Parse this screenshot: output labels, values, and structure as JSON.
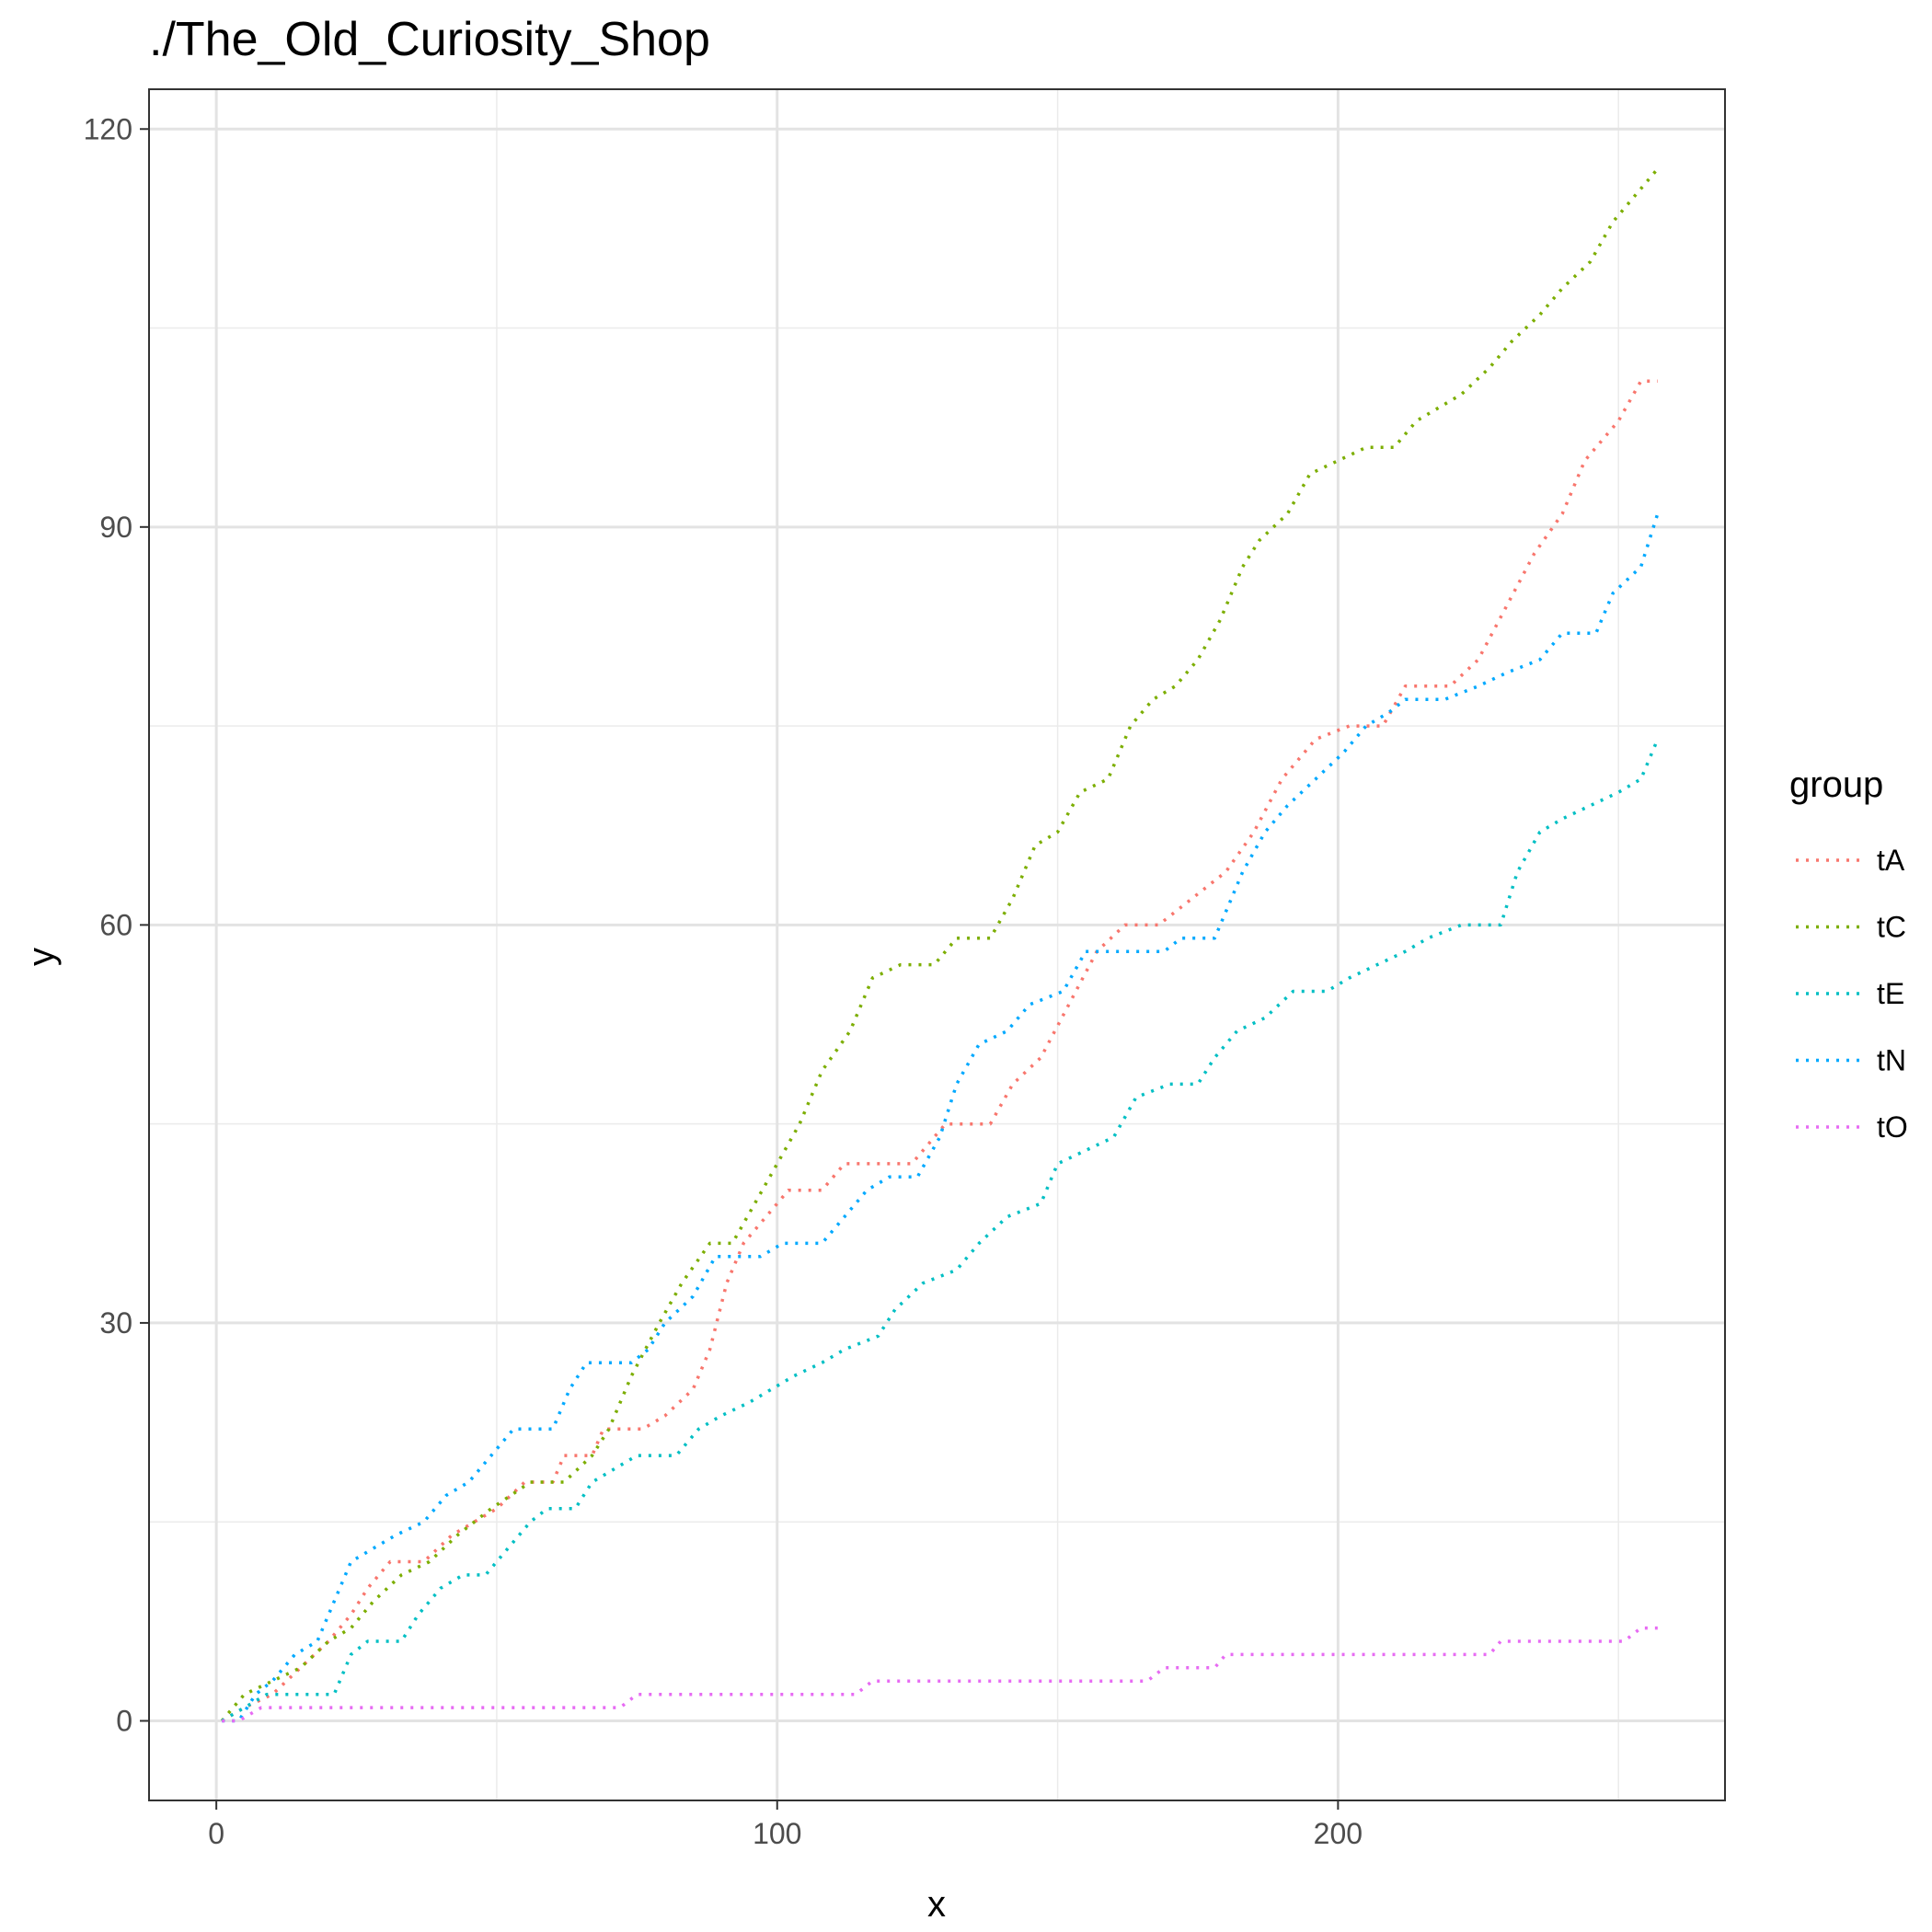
{
  "chart_data": {
    "type": "line",
    "title": "./The_Old_Curiosity_Shop",
    "xlabel": "x",
    "ylabel": "y",
    "xlim": [
      -12,
      269
    ],
    "ylim": [
      -6,
      123
    ],
    "x_ticks": [
      0,
      100,
      200
    ],
    "y_ticks": [
      0,
      30,
      60,
      90,
      120
    ],
    "x_tick_labels": [
      "0",
      "100",
      "200"
    ],
    "y_tick_labels": [
      "0",
      "30",
      "60",
      "90",
      "120"
    ],
    "grid": true,
    "line_style": "dotted",
    "legend": {
      "title": "group",
      "position": "right"
    },
    "series": [
      {
        "name": "tA",
        "color": "#F8766D",
        "points": [
          [
            1,
            0
          ],
          [
            5,
            1
          ],
          [
            10,
            2
          ],
          [
            15,
            4
          ],
          [
            20,
            6
          ],
          [
            24,
            8
          ],
          [
            27,
            10
          ],
          [
            31,
            12
          ],
          [
            37,
            12
          ],
          [
            42,
            14
          ],
          [
            46,
            15
          ],
          [
            50,
            16
          ],
          [
            55,
            18
          ],
          [
            60,
            18
          ],
          [
            62,
            20
          ],
          [
            67,
            20
          ],
          [
            69,
            22
          ],
          [
            76,
            22
          ],
          [
            80,
            23
          ],
          [
            85,
            25
          ],
          [
            88,
            28
          ],
          [
            91,
            33
          ],
          [
            94,
            36
          ],
          [
            98,
            38
          ],
          [
            102,
            40
          ],
          [
            108,
            40
          ],
          [
            112,
            42
          ],
          [
            118,
            42
          ],
          [
            124,
            42
          ],
          [
            130,
            45
          ],
          [
            138,
            45
          ],
          [
            142,
            48
          ],
          [
            147,
            50
          ],
          [
            152,
            54
          ],
          [
            157,
            58
          ],
          [
            162,
            60
          ],
          [
            168,
            60
          ],
          [
            174,
            62
          ],
          [
            180,
            64
          ],
          [
            185,
            67
          ],
          [
            190,
            71
          ],
          [
            196,
            74
          ],
          [
            202,
            75
          ],
          [
            208,
            75
          ],
          [
            212,
            78
          ],
          [
            220,
            78
          ],
          [
            225,
            80
          ],
          [
            230,
            84
          ],
          [
            235,
            88
          ],
          [
            240,
            91
          ],
          [
            244,
            95
          ],
          [
            250,
            98
          ],
          [
            254,
            101
          ],
          [
            257,
            101
          ]
        ]
      },
      {
        "name": "tC",
        "color": "#7CAE00",
        "points": [
          [
            1,
            0
          ],
          [
            5,
            2
          ],
          [
            10,
            3
          ],
          [
            15,
            4
          ],
          [
            20,
            6
          ],
          [
            24,
            7
          ],
          [
            28,
            9
          ],
          [
            33,
            11
          ],
          [
            38,
            12
          ],
          [
            43,
            14
          ],
          [
            49,
            16
          ],
          [
            56,
            18
          ],
          [
            62,
            18
          ],
          [
            67,
            20
          ],
          [
            70,
            22
          ],
          [
            74,
            26
          ],
          [
            79,
            30
          ],
          [
            83,
            33
          ],
          [
            88,
            36
          ],
          [
            92,
            36
          ],
          [
            96,
            39
          ],
          [
            100,
            42
          ],
          [
            104,
            45
          ],
          [
            108,
            49
          ],
          [
            113,
            52
          ],
          [
            117,
            56
          ],
          [
            122,
            57
          ],
          [
            128,
            57
          ],
          [
            132,
            59
          ],
          [
            138,
            59
          ],
          [
            142,
            62
          ],
          [
            146,
            66
          ],
          [
            150,
            67
          ],
          [
            154,
            70
          ],
          [
            159,
            71
          ],
          [
            163,
            75
          ],
          [
            167,
            77
          ],
          [
            171,
            78
          ],
          [
            175,
            80
          ],
          [
            179,
            83
          ],
          [
            183,
            87
          ],
          [
            186,
            89
          ],
          [
            191,
            91
          ],
          [
            195,
            94
          ],
          [
            200,
            95
          ],
          [
            205,
            96
          ],
          [
            210,
            96
          ],
          [
            214,
            98
          ],
          [
            218,
            99
          ],
          [
            222,
            100
          ],
          [
            227,
            102
          ],
          [
            231,
            104
          ],
          [
            236,
            106
          ],
          [
            240,
            108
          ],
          [
            245,
            110
          ],
          [
            249,
            113
          ],
          [
            253,
            115
          ],
          [
            257,
            117
          ]
        ]
      },
      {
        "name": "tE",
        "color": "#00BFC4",
        "points": [
          [
            1,
            0
          ],
          [
            5,
            1
          ],
          [
            9,
            2
          ],
          [
            13,
            2
          ],
          [
            16,
            2
          ],
          [
            21,
            2
          ],
          [
            24,
            5
          ],
          [
            27,
            6
          ],
          [
            33,
            6
          ],
          [
            36,
            8
          ],
          [
            40,
            10
          ],
          [
            44,
            11
          ],
          [
            48,
            11
          ],
          [
            52,
            13
          ],
          [
            56,
            15
          ],
          [
            59,
            16
          ],
          [
            64,
            16
          ],
          [
            67,
            18
          ],
          [
            71,
            19
          ],
          [
            75,
            20
          ],
          [
            82,
            20
          ],
          [
            86,
            22
          ],
          [
            90,
            23
          ],
          [
            95,
            24
          ],
          [
            99,
            25
          ],
          [
            103,
            26
          ],
          [
            108,
            27
          ],
          [
            112,
            28
          ],
          [
            118,
            29
          ],
          [
            121,
            31
          ],
          [
            126,
            33
          ],
          [
            132,
            34
          ],
          [
            136,
            36
          ],
          [
            141,
            38
          ],
          [
            147,
            39
          ],
          [
            150,
            42
          ],
          [
            155,
            43
          ],
          [
            160,
            44
          ],
          [
            164,
            47
          ],
          [
            170,
            48
          ],
          [
            175,
            48
          ],
          [
            178,
            50
          ],
          [
            182,
            52
          ],
          [
            187,
            53
          ],
          [
            192,
            55
          ],
          [
            198,
            55
          ],
          [
            202,
            56
          ],
          [
            207,
            57
          ],
          [
            212,
            58
          ],
          [
            216,
            59
          ],
          [
            222,
            60
          ],
          [
            229,
            60
          ],
          [
            232,
            64
          ],
          [
            236,
            67
          ],
          [
            240,
            68
          ],
          [
            245,
            69
          ],
          [
            250,
            70
          ],
          [
            254,
            71
          ],
          [
            257,
            74
          ]
        ]
      },
      {
        "name": "tN",
        "color": "#00A9FF",
        "points": [
          [
            1,
            0
          ],
          [
            4,
            0
          ],
          [
            7,
            2
          ],
          [
            10,
            3
          ],
          [
            14,
            5
          ],
          [
            18,
            6
          ],
          [
            21,
            9
          ],
          [
            24,
            12
          ],
          [
            28,
            13
          ],
          [
            32,
            14
          ],
          [
            37,
            15
          ],
          [
            41,
            17
          ],
          [
            45,
            18
          ],
          [
            49,
            20
          ],
          [
            53,
            22
          ],
          [
            60,
            22
          ],
          [
            63,
            25
          ],
          [
            66,
            27
          ],
          [
            74,
            27
          ],
          [
            77,
            28
          ],
          [
            80,
            30
          ],
          [
            85,
            32
          ],
          [
            89,
            35
          ],
          [
            97,
            35
          ],
          [
            101,
            36
          ],
          [
            108,
            36
          ],
          [
            112,
            38
          ],
          [
            116,
            40
          ],
          [
            120,
            41
          ],
          [
            125,
            41
          ],
          [
            129,
            44
          ],
          [
            132,
            48
          ],
          [
            136,
            51
          ],
          [
            141,
            52
          ],
          [
            145,
            54
          ],
          [
            151,
            55
          ],
          [
            155,
            58
          ],
          [
            162,
            58
          ],
          [
            169,
            58
          ],
          [
            172,
            59
          ],
          [
            178,
            59
          ],
          [
            183,
            64
          ],
          [
            187,
            67
          ],
          [
            191,
            69
          ],
          [
            196,
            71
          ],
          [
            201,
            73
          ],
          [
            205,
            75
          ],
          [
            209,
            76
          ],
          [
            212,
            77
          ],
          [
            219,
            77
          ],
          [
            225,
            78
          ],
          [
            230,
            79
          ],
          [
            236,
            80
          ],
          [
            240,
            82
          ],
          [
            246,
            82
          ],
          [
            249,
            85
          ],
          [
            254,
            87
          ],
          [
            257,
            91
          ]
        ]
      },
      {
        "name": "tO",
        "color": "#E76BF3",
        "points": [
          [
            1,
            0
          ],
          [
            4,
            0
          ],
          [
            8,
            1
          ],
          [
            20,
            1
          ],
          [
            40,
            1
          ],
          [
            60,
            1
          ],
          [
            72,
            1
          ],
          [
            75,
            2
          ],
          [
            90,
            2
          ],
          [
            105,
            2
          ],
          [
            114,
            2
          ],
          [
            117,
            3
          ],
          [
            135,
            3
          ],
          [
            150,
            3
          ],
          [
            166,
            3
          ],
          [
            169,
            4
          ],
          [
            178,
            4
          ],
          [
            180,
            5
          ],
          [
            200,
            5
          ],
          [
            216,
            5
          ],
          [
            227,
            5
          ],
          [
            229,
            6
          ],
          [
            240,
            6
          ],
          [
            251,
            6
          ],
          [
            254,
            7
          ],
          [
            257,
            7
          ]
        ]
      }
    ]
  }
}
